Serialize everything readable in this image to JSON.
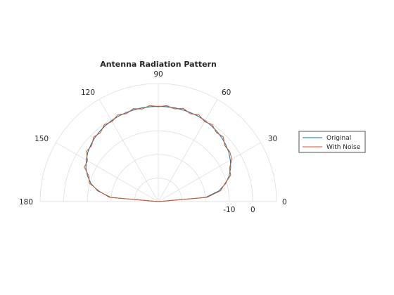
{
  "chart_data": {
    "type": "polar-line",
    "title": "Antenna Radiation Pattern",
    "theta_range_deg": [
      0,
      180
    ],
    "r_range_db": [
      -40,
      10
    ],
    "theta_ticks": [
      "0",
      "30",
      "60",
      "90",
      "120",
      "150",
      "180"
    ],
    "r_ticks": [
      "-10",
      "0"
    ],
    "grid": true,
    "legend_position": "right",
    "series": [
      {
        "name": "Original",
        "color": "#0072BD",
        "theta_deg": [
          0,
          5,
          10,
          15,
          20,
          25,
          30,
          35,
          40,
          45,
          50,
          55,
          60,
          65,
          70,
          75,
          80,
          85,
          90,
          95,
          100,
          105,
          110,
          115,
          120,
          125,
          130,
          135,
          140,
          145,
          150,
          155,
          160,
          165,
          170,
          175,
          180
        ],
        "r_db": [
          -40,
          -19.9,
          -14.0,
          -10.5,
          -8.1,
          -6.2,
          -4.8,
          -3.6,
          -2.7,
          -1.9,
          -1.3,
          -0.8,
          -0.4,
          -0.1,
          0.1,
          0.25,
          0.33,
          0.37,
          0.38,
          0.37,
          0.33,
          0.25,
          0.1,
          -0.1,
          -0.4,
          -0.8,
          -1.3,
          -1.9,
          -2.7,
          -3.6,
          -4.8,
          -6.2,
          -8.1,
          -10.5,
          -14.0,
          -19.9,
          -40
        ]
      },
      {
        "name": "With Noise",
        "color": "#D95319",
        "theta_deg": [
          0,
          5,
          10,
          15,
          20,
          25,
          30,
          35,
          40,
          45,
          50,
          55,
          60,
          65,
          70,
          75,
          80,
          85,
          90,
          95,
          100,
          105,
          110,
          115,
          120,
          125,
          130,
          135,
          140,
          145,
          150,
          155,
          160,
          165,
          170,
          175,
          180
        ],
        "r_db": [
          -40,
          -19.3,
          -13.2,
          -10.9,
          -7.4,
          -6.8,
          -4.1,
          -3.1,
          -3.2,
          -1.2,
          -1.8,
          -0.2,
          -0.9,
          0.6,
          -0.4,
          0.9,
          -0.1,
          0.8,
          0.2,
          0.9,
          -0.2,
          0.8,
          -0.4,
          0.6,
          -0.9,
          -0.2,
          -1.9,
          -1.3,
          -3.2,
          -2.9,
          -5.4,
          -5.5,
          -8.8,
          -9.8,
          -14.6,
          -19.2,
          -40
        ]
      }
    ]
  }
}
